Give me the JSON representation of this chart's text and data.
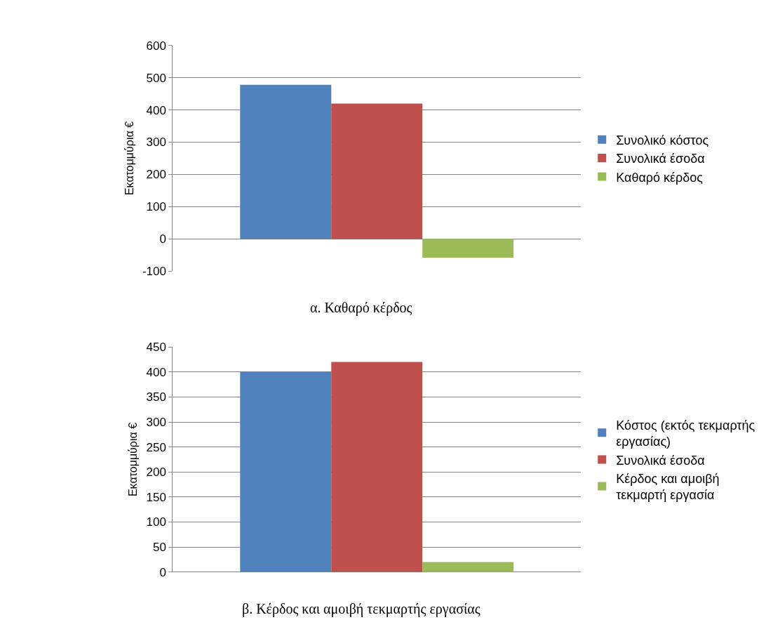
{
  "chart_data": [
    {
      "type": "bar",
      "ylabel": "Εκατομμύρια €",
      "categories": [
        null
      ],
      "series": [
        {
          "name": "Συνολικό κόστος",
          "color": "#4f81bd",
          "values": [
            478
          ]
        },
        {
          "name": "Συνολικά έσοδα",
          "color": "#c0504d",
          "values": [
            420
          ]
        },
        {
          "name": "Καθαρό κέρδος",
          "color": "#9bbb59",
          "values": [
            -58
          ]
        }
      ],
      "ylim": [
        -100,
        600
      ],
      "yticks": [
        -100,
        0,
        100,
        200,
        300,
        400,
        500,
        600
      ],
      "grid": "y",
      "legend": "right",
      "tick_labels": "y",
      "annotations": [
        "α. Καθαρό κέρδος"
      ]
    },
    {
      "type": "bar",
      "ylabel": "Εκατομμύρια €",
      "categories": [
        null
      ],
      "series": [
        {
          "name": "Κόστος (εκτός τεκμαρτής εργασίας)",
          "color": "#4f81bd",
          "values": [
            400
          ]
        },
        {
          "name": "Συνολικά έσοδα",
          "color": "#c0504d",
          "values": [
            420
          ]
        },
        {
          "name": "Κέρδος και αμοιβή τεκμαρτή εργασία",
          "color": "#9bbb59",
          "values": [
            20
          ]
        }
      ],
      "ylim": [
        0,
        450
      ],
      "yticks": [
        0,
        50,
        100,
        150,
        200,
        250,
        300,
        350,
        400,
        450
      ],
      "grid": "y",
      "legend": "right",
      "tick_labels": "y",
      "annotations": [
        "β. Κέρδος και αμοιβή τεκμαρτής εργασίας"
      ]
    }
  ]
}
